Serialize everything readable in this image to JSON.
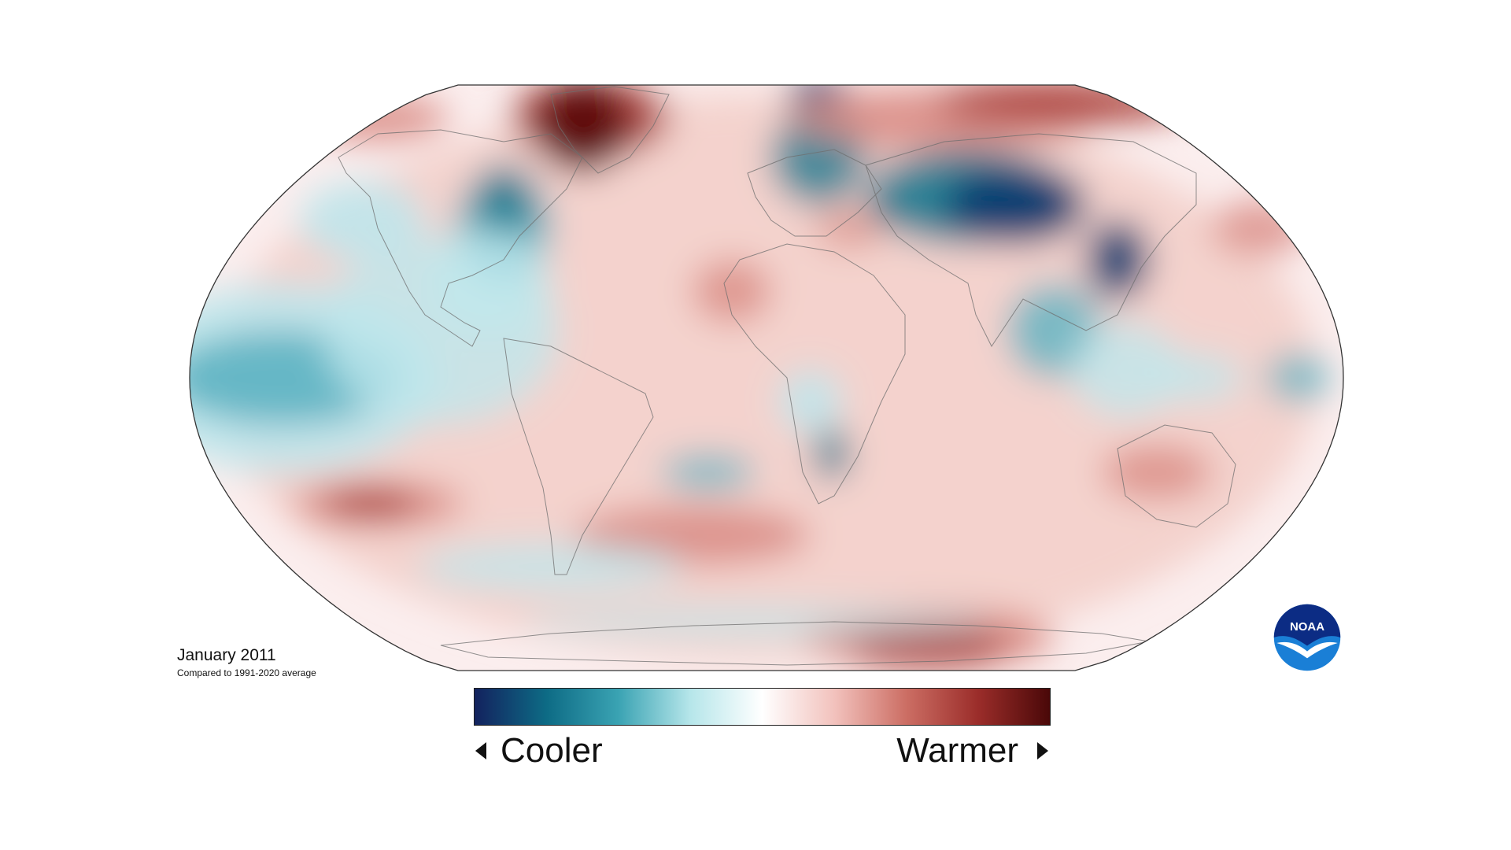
{
  "title": "January 2011",
  "subtitle": "Compared to 1991-2020 average",
  "legend": {
    "low_label": "Cooler",
    "high_label": "Warmer",
    "gradient": [
      "#13225e",
      "#0d6b85",
      "#3aa3b3",
      "#b6e6ea",
      "#ffffff",
      "#f2c2bd",
      "#cc6e64",
      "#9b2d2a",
      "#4a0808"
    ]
  },
  "logo": {
    "text": "NOAA",
    "colors": {
      "dark": "#0c2c84",
      "light": "#1a7fd6"
    }
  },
  "map": {
    "projection": "robinson",
    "colors": {
      "ocean_neutral": "#fbeeee",
      "cool_light": "#bfe7ec",
      "cool_mid": "#5cb3c2",
      "cool_strong": "#1a7a90",
      "cool_deep": "#0d3d70",
      "warm_light": "#f3cfca",
      "warm_mid": "#d98a82",
      "warm_strong": "#a83a34",
      "warm_deep": "#5c0f0f",
      "outline": "#333333"
    }
  }
}
